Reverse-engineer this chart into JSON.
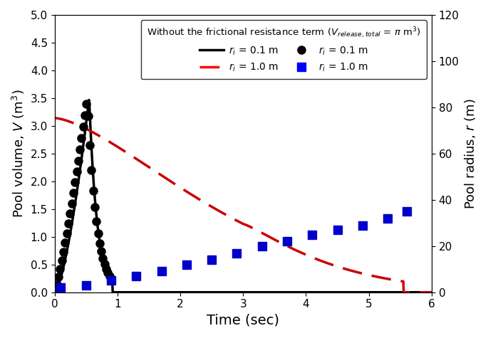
{
  "title": "Without the frictional resistance term ($V_{release,total} = \\pi$ m$^3$)",
  "xlabel": "Time (sec)",
  "ylabel_left": "Pool volume, $V$ (m$^3$)",
  "ylabel_right": "Pool radius, $r$ (m)",
  "xlim": [
    0,
    6
  ],
  "ylim_left": [
    0,
    5.0
  ],
  "ylim_right": [
    0,
    120
  ],
  "xticks": [
    0,
    1,
    2,
    3,
    4,
    5,
    6
  ],
  "yticks_left": [
    0.0,
    0.5,
    1.0,
    1.5,
    2.0,
    2.5,
    3.0,
    3.5,
    4.0,
    4.5,
    5.0
  ],
  "yticks_right": [
    0,
    20,
    40,
    60,
    80,
    100,
    120
  ],
  "color_black": "#000000",
  "color_red": "#cc0000",
  "color_blue": "#0000cc",
  "legend_title": "Without the frictional resistance term ($V_{release,total} = \\pi$ m$^3$)"
}
